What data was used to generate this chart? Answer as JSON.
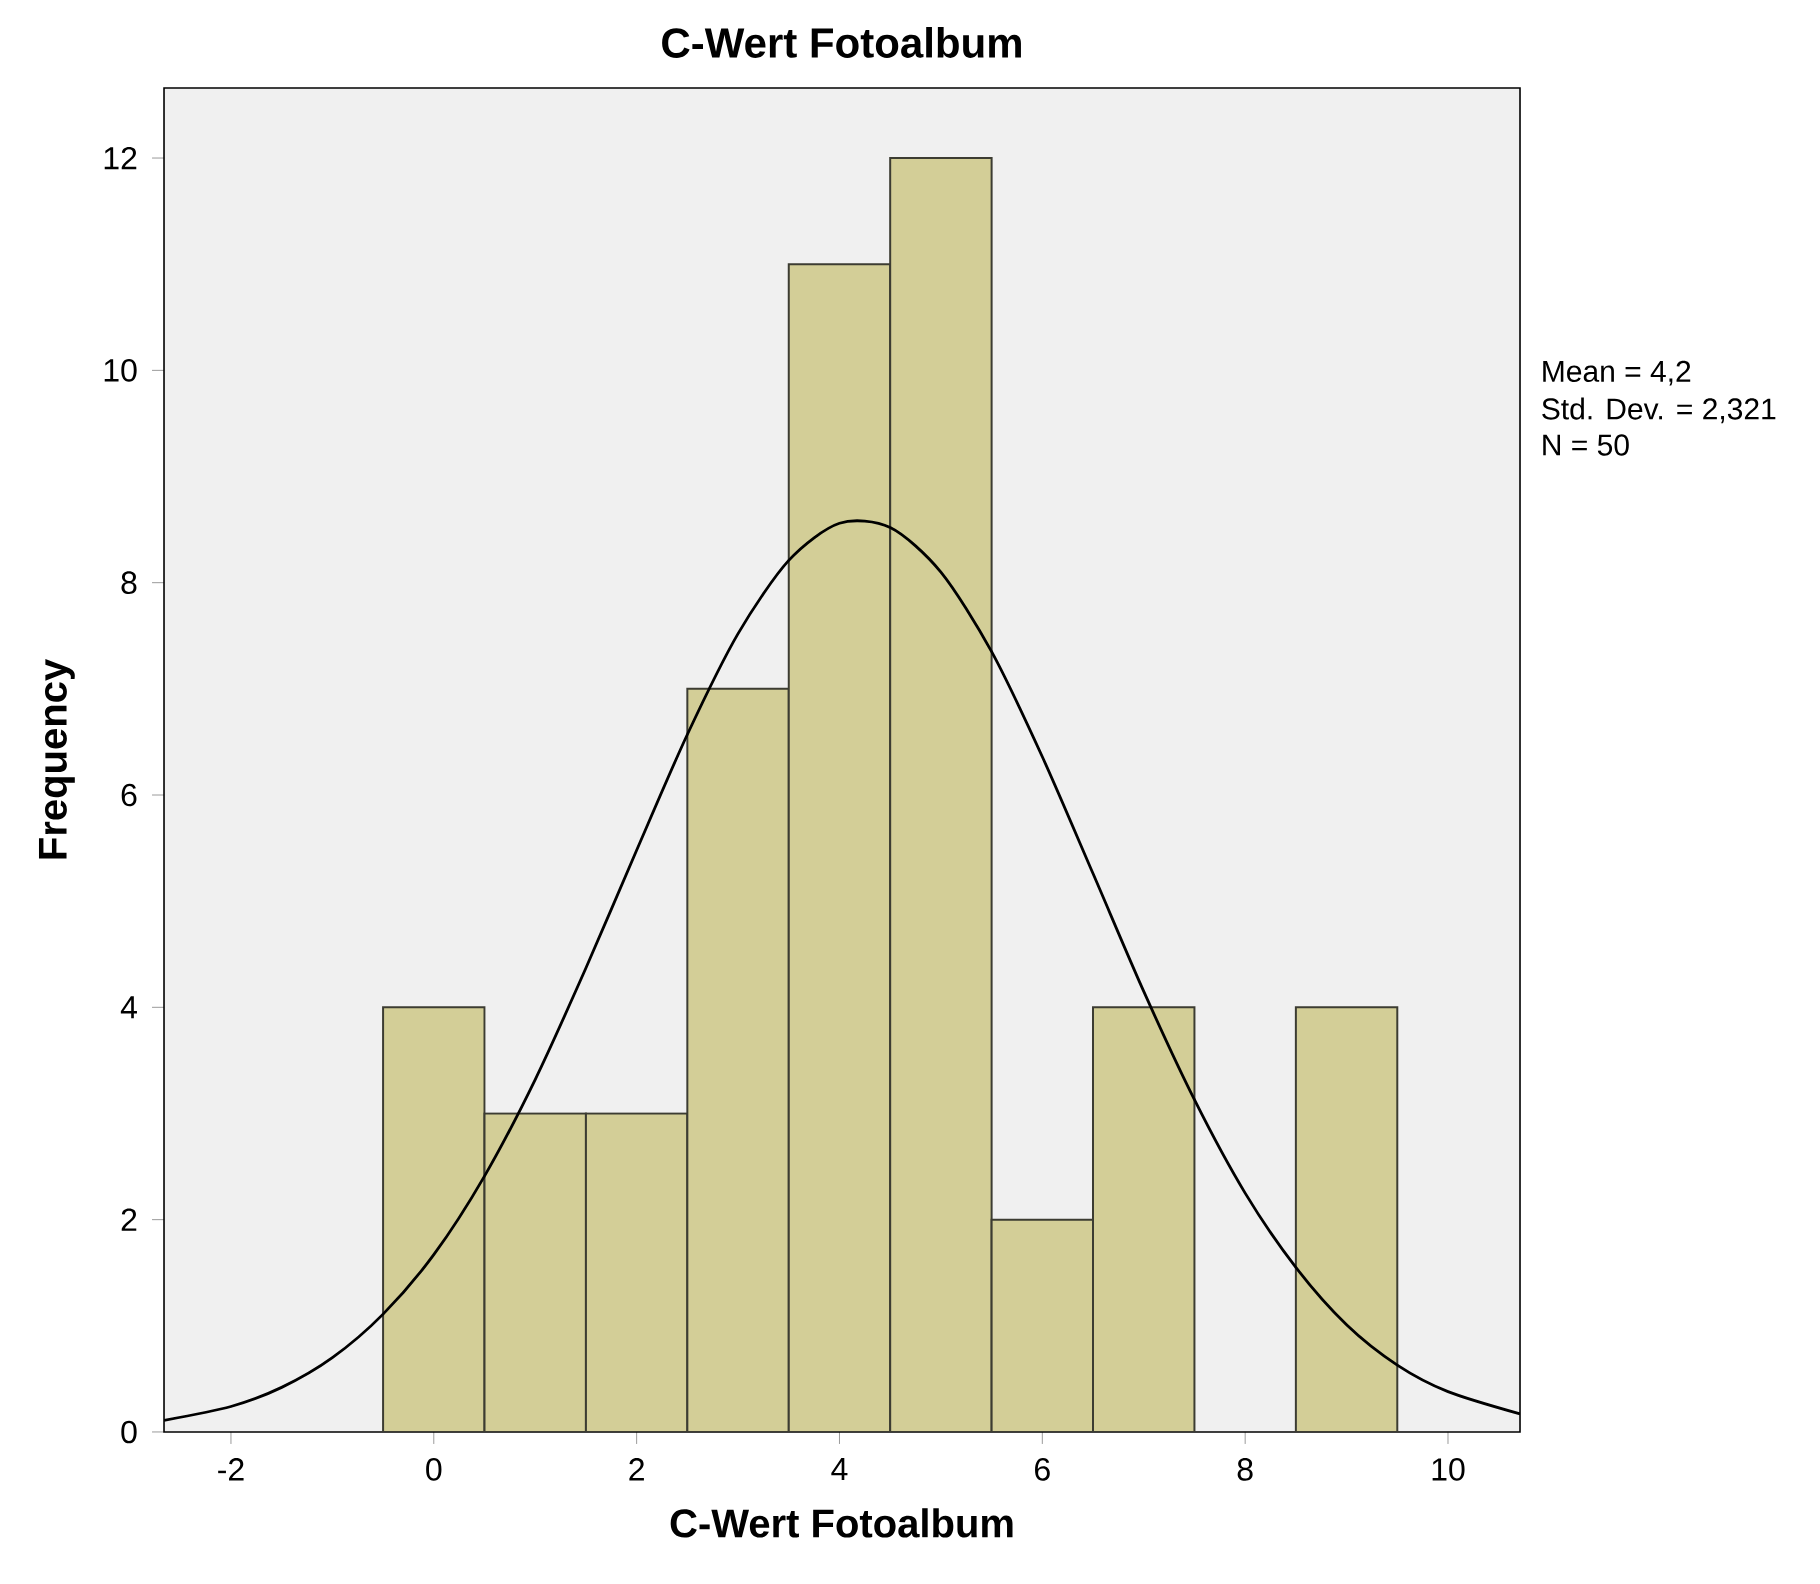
{
  "chart_data": {
    "type": "histogram",
    "title": "C-Wert Fotoalbum",
    "xlabel": "C-Wert Fotoalbum",
    "ylabel": "Frequency",
    "bins": [
      -0.5,
      0.5,
      1.5,
      2.5,
      3.5,
      4.5,
      5.5,
      6.5,
      7.5,
      8.5,
      9.5
    ],
    "values": [
      4,
      3,
      3,
      7,
      11,
      12,
      2,
      4,
      0,
      4
    ],
    "color": "#d3ce97",
    "series": [
      {
        "type": "line",
        "color": "#000000",
        "x": [
          -2.66,
          -2,
          -1.5,
          -1,
          -0.5,
          0,
          0.5,
          1,
          1.5,
          2,
          2.5,
          3,
          3.5,
          4,
          4.5,
          5,
          5.5,
          6,
          6.5,
          7,
          7.5,
          8,
          8.5,
          9,
          9.5,
          10,
          10.71
        ],
        "values": [
          0.11,
          0.24,
          0.42,
          0.7,
          1.11,
          1.67,
          2.41,
          3.32,
          4.37,
          5.48,
          6.57,
          7.52,
          8.21,
          8.56,
          8.52,
          8.1,
          7.35,
          6.36,
          5.26,
          4.15,
          3.13,
          2.25,
          1.55,
          1.01,
          0.63,
          0.38,
          0.17
        ]
      }
    ],
    "xlim": [
      -2.66,
      10.71
    ],
    "ylim": [
      0,
      12.66
    ],
    "xticks": [
      -2,
      0,
      2,
      4,
      6,
      8,
      10
    ],
    "yticks": [
      0,
      2,
      4,
      6,
      8,
      10,
      12
    ],
    "annotations": [
      "Mean = 4,2",
      "Std. Dev. = 2,321",
      "N = 50"
    ]
  }
}
